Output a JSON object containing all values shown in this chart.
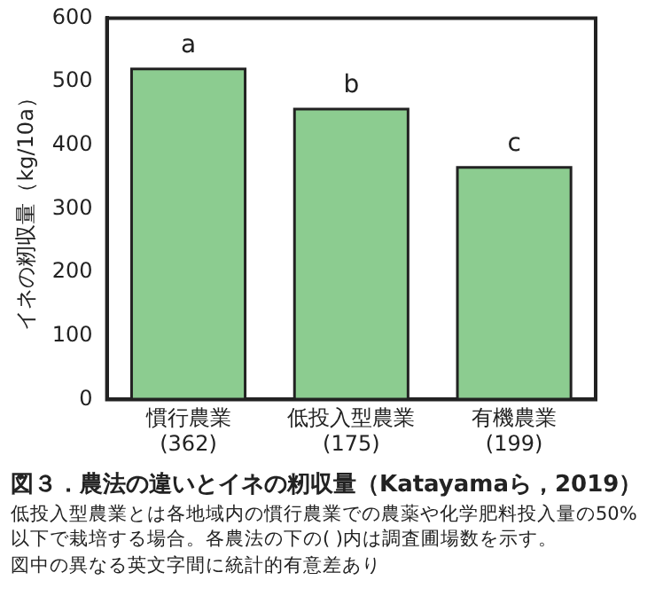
{
  "chart_data": {
    "type": "bar",
    "title": "図３．農法の違いとイネの籾収量（Katayamaら，2019）",
    "ylabel": "イネの籾収量（kg/10a）",
    "categories": [
      "慣行農業\n(362)",
      "低投入型農業\n(175)",
      "有機農業\n(199)"
    ],
    "values": [
      520,
      457,
      365
    ],
    "color": "#8ccc90",
    "ylim": [
      0,
      600
    ],
    "yticks": [
      0,
      100,
      200,
      300,
      400,
      500,
      600
    ],
    "grid": false,
    "legend": false,
    "annotations": [
      {
        "text": "a",
        "x": "慣行農業\n(362)",
        "y": 520
      },
      {
        "text": "b",
        "x": "低投入型農業\n(175)",
        "y": 457
      },
      {
        "text": "c",
        "x": "有機農業\n(199)",
        "y": 365
      },
      "低投入型農業とは各地域内の慣行農業での農薬や化学肥料投入量の50%以下で栽培する場合。各農法の下の( )内は調査圃場数を示す。",
      "図中の異なる英文字間に統計的有意差あり"
    ]
  }
}
